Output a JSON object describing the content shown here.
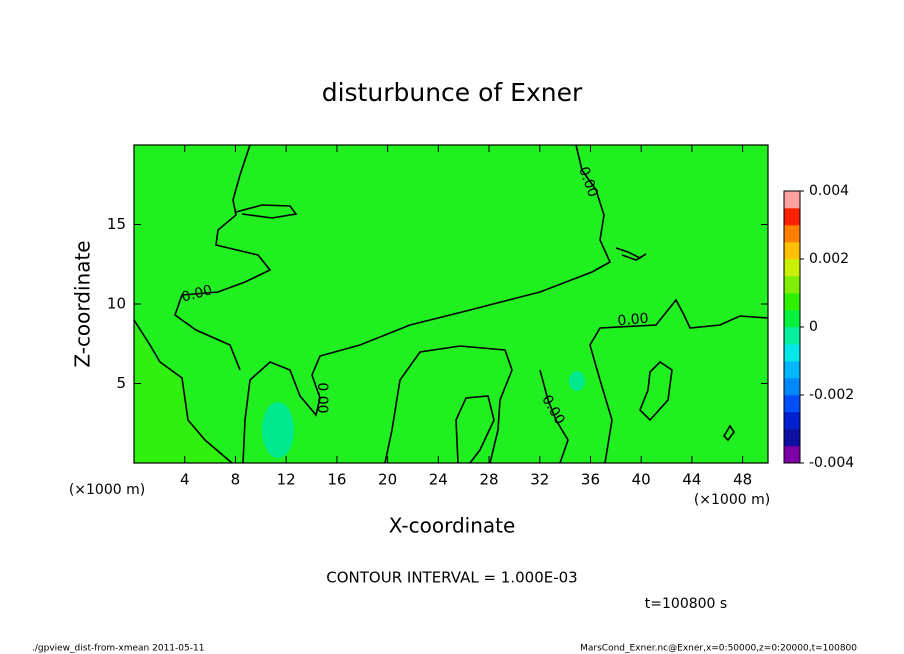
{
  "chart_data": {
    "type": "contour",
    "title": "disturbunce of Exner",
    "x_label": "X-coordinate",
    "y_label": "Z-coordinate",
    "x_unit_labels": [
      "(×1000 m)",
      "(×1000 m)"
    ],
    "xlim": [
      0,
      50
    ],
    "xticks": [
      4,
      8,
      12,
      16,
      20,
      24,
      28,
      32,
      36,
      40,
      44,
      48
    ],
    "ylim": [
      0,
      20
    ],
    "yticks": [
      5,
      10,
      15
    ],
    "contour_labels": [
      "0.00",
      "0.00",
      "0.00",
      "0.00",
      "0.00"
    ],
    "contour_interval": "CONTOUR INTERVAL = 1.000E-03",
    "time_label": "t=100800 s",
    "footer_left": "./gpview_dist-from-xmean  2011-05-11",
    "footer_right": "MarsCond_Exner.nc@Exner,x=0:50000,z=0:20000,t=100800",
    "colorbar": {
      "lim": [
        -0.004,
        0.004
      ],
      "ticks": [
        0.004,
        0.002,
        0,
        -0.002,
        -0.004
      ],
      "colors": [
        "#8000a8",
        "#1010a0",
        "#0020d0",
        "#0050ff",
        "#0088ff",
        "#00b8ff",
        "#00e8e8",
        "#00f0a0",
        "#00f040",
        "#30f000",
        "#80f000",
        "#c8f000",
        "#ffc000",
        "#ff8000",
        "#ff2000",
        "#ffa0a0"
      ]
    }
  }
}
